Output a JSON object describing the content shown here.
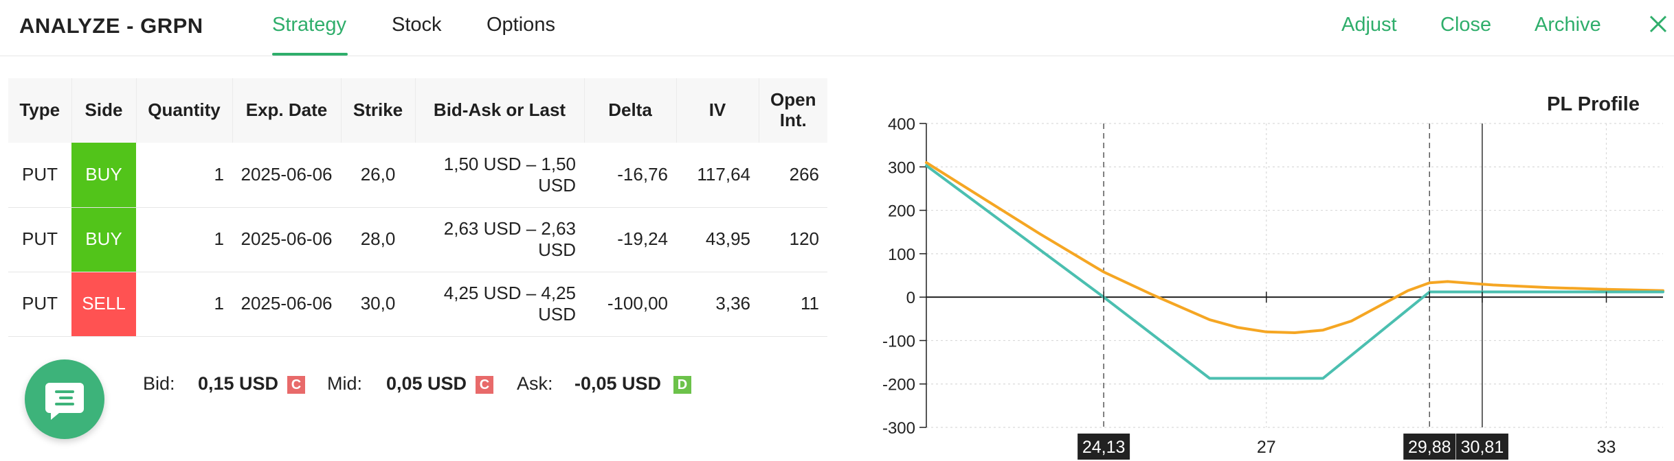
{
  "header": {
    "title": "ANALYZE - GRPN",
    "tabs": [
      {
        "label": "Strategy",
        "active": true
      },
      {
        "label": "Stock",
        "active": false
      },
      {
        "label": "Options",
        "active": false
      }
    ],
    "actions": [
      "Adjust",
      "Close",
      "Archive"
    ],
    "close_icon": "close-icon",
    "accent_color": "#2fae6b"
  },
  "table": {
    "columns": [
      "Type",
      "Side",
      "Quantity",
      "Exp. Date",
      "Strike",
      "Bid-Ask or Last",
      "Delta",
      "IV",
      "Open Int."
    ],
    "rows": [
      {
        "type": "PUT",
        "side": "BUY",
        "quantity": "1",
        "exp_date": "2025-06-06",
        "strike": "26,0",
        "bid_ask": "1,50 USD – 1,50 USD",
        "delta": "-16,76",
        "iv": "117,64",
        "open_int": "266"
      },
      {
        "type": "PUT",
        "side": "BUY",
        "quantity": "1",
        "exp_date": "2025-06-06",
        "strike": "28,0",
        "bid_ask": "2,63 USD – 2,63 USD",
        "delta": "-19,24",
        "iv": "43,95",
        "open_int": "120"
      },
      {
        "type": "PUT",
        "side": "SELL",
        "quantity": "1",
        "exp_date": "2025-06-06",
        "strike": "30,0",
        "bid_ask": "4,25 USD – 4,25 USD",
        "delta": "-100,00",
        "iv": "3,36",
        "open_int": "11"
      }
    ],
    "buy_color": "#52c41a",
    "sell_color": "#ff5252"
  },
  "summary": {
    "bid_label": "Bid:",
    "bid_value": "0,15 USD",
    "bid_badge": "C",
    "mid_label": "Mid:",
    "mid_value": "0,05 USD",
    "mid_badge": "C",
    "ask_label": "Ask:",
    "ask_value": "-0,05 USD",
    "ask_badge": "D"
  },
  "fab": {
    "icon": "chat-icon"
  },
  "chart_data": {
    "type": "line",
    "title": "PL Profile",
    "xlim": [
      21.0,
      34.0
    ],
    "ylim": [
      -300,
      400
    ],
    "yticks": [
      400,
      300,
      200,
      100,
      0,
      -100,
      -200,
      -300
    ],
    "xticks": [
      {
        "value": 24.13,
        "label": "24,13",
        "highlight": true
      },
      {
        "value": 27,
        "label": "27",
        "highlight": false
      },
      {
        "value": 29.88,
        "label": "29,88",
        "highlight": true
      },
      {
        "value": 30.81,
        "label": "30,81",
        "highlight": true
      },
      {
        "value": 33,
        "label": "33",
        "highlight": false
      }
    ],
    "dashed_lines": [
      24.13,
      29.88
    ],
    "solid_line": 30.81,
    "grid": true,
    "series": [
      {
        "color": "#f5a623",
        "x": [
          21.0,
          22.0,
          23.0,
          24.0,
          24.13,
          25.0,
          26.0,
          26.5,
          27.0,
          27.5,
          28.0,
          28.5,
          29.0,
          29.5,
          29.88,
          30.2,
          31.0,
          32.0,
          33.0,
          34.0
        ],
        "y": [
          310,
          228,
          146,
          68,
          58,
          5,
          -52,
          -70,
          -80,
          -82,
          -76,
          -55,
          -20,
          15,
          33,
          36,
          28,
          22,
          18,
          15
        ]
      },
      {
        "color": "#4bbfb0",
        "x": [
          21.0,
          24.13,
          26.0,
          28.0,
          29.88,
          34.0
        ],
        "y": [
          303,
          0,
          -187,
          -187,
          12,
          12
        ]
      }
    ]
  }
}
